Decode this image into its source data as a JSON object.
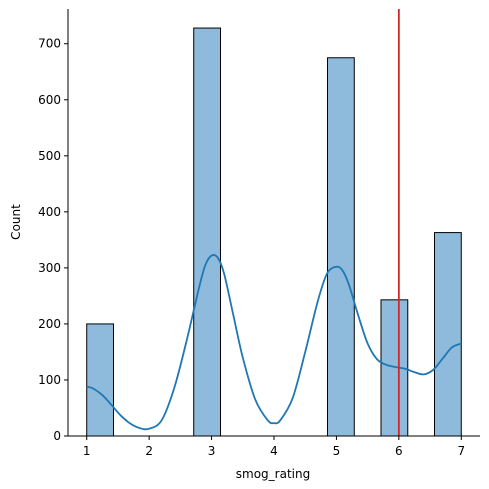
{
  "chart_data": {
    "type": "bar",
    "title": "",
    "xlabel": "smog_rating",
    "ylabel": "Count",
    "xlim": [
      0.7,
      7.3
    ],
    "ylim": [
      0,
      762
    ],
    "grid": false,
    "xticks": [
      1,
      2,
      3,
      4,
      5,
      6,
      7
    ],
    "yticks": [
      0,
      100,
      200,
      300,
      400,
      500,
      600,
      700
    ],
    "bars": [
      {
        "x0": 1.0,
        "x1": 1.429,
        "value": 200
      },
      {
        "x0": 2.714,
        "x1": 3.143,
        "value": 728
      },
      {
        "x0": 4.857,
        "x1": 5.286,
        "value": 675
      },
      {
        "x0": 5.714,
        "x1": 6.143,
        "value": 243
      },
      {
        "x0": 6.571,
        "x1": 7.0,
        "value": 363
      }
    ],
    "kde": {
      "x": [
        1.0,
        1.1,
        1.25,
        1.4,
        1.55,
        1.7,
        1.85,
        2.0,
        2.2,
        2.4,
        2.6,
        2.8,
        2.9,
        3.0,
        3.1,
        3.2,
        3.35,
        3.5,
        3.7,
        3.9,
        4.0,
        4.1,
        4.3,
        4.5,
        4.7,
        4.85,
        5.0,
        5.1,
        5.2,
        5.35,
        5.5,
        5.65,
        5.8,
        5.95,
        6.1,
        6.25,
        6.4,
        6.55,
        6.7,
        6.85,
        7.0
      ],
      "y": [
        88,
        85,
        73,
        55,
        36,
        22,
        14,
        13,
        28,
        85,
        170,
        265,
        305,
        322,
        318,
        290,
        215,
        140,
        65,
        28,
        23,
        28,
        68,
        150,
        240,
        290,
        302,
        295,
        270,
        215,
        165,
        137,
        127,
        123,
        120,
        114,
        110,
        118,
        138,
        158,
        165
      ],
      "color": "#1f77b4"
    },
    "vline": {
      "x": 6,
      "color": "#d62728"
    },
    "bar_fill": "#8ebbdc",
    "bar_edge": "#000000"
  }
}
